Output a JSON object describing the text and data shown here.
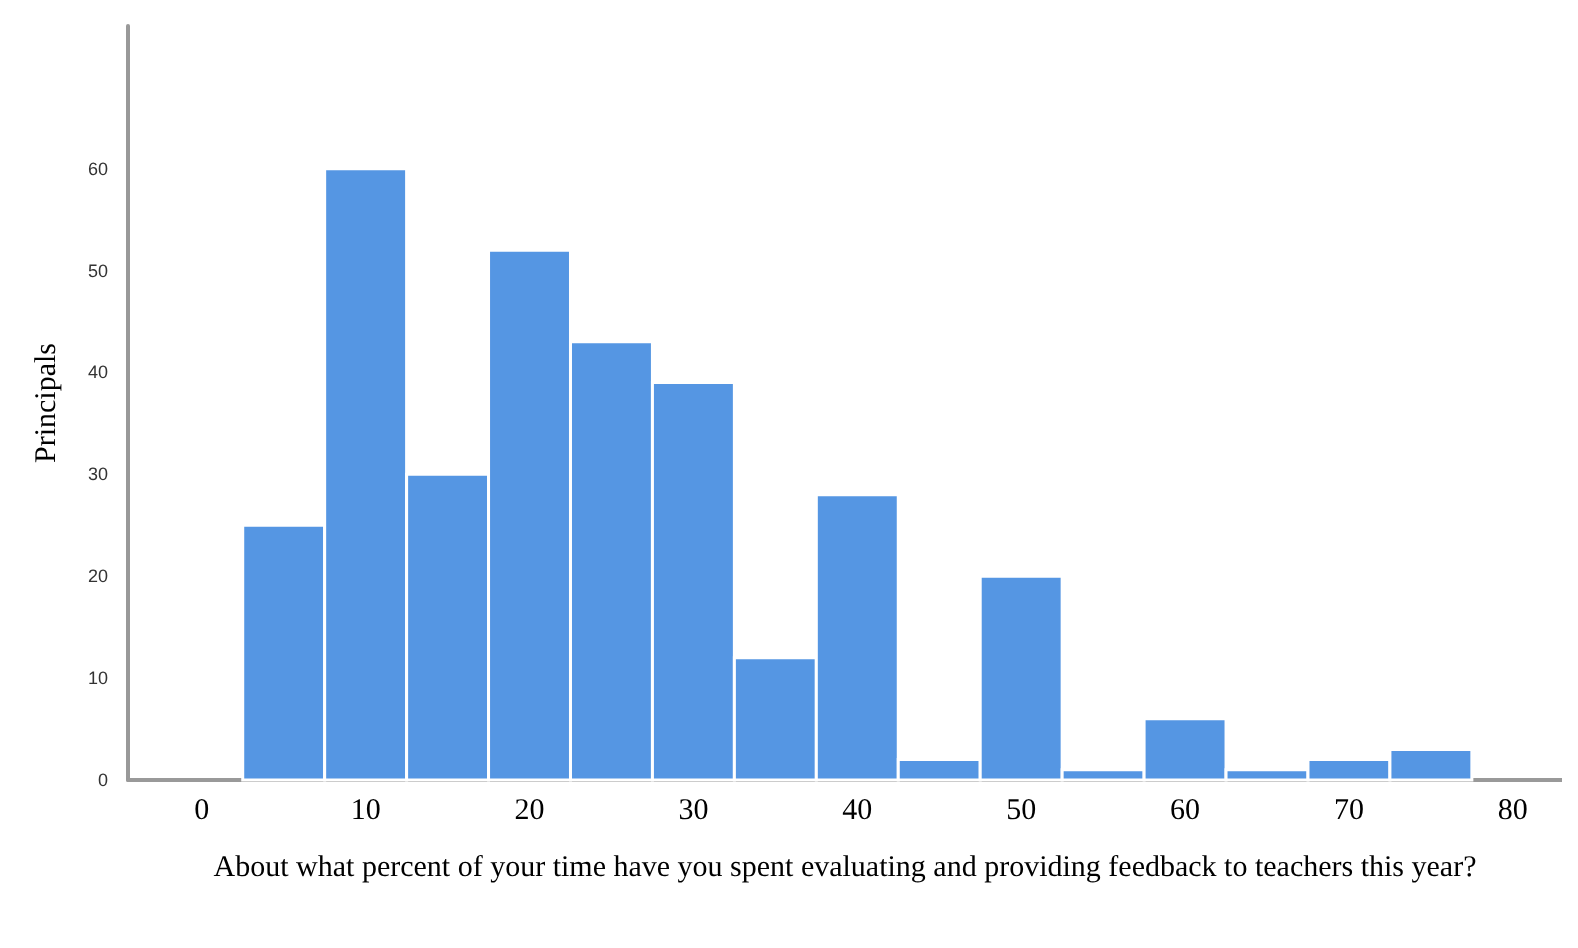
{
  "chart_data": {
    "type": "histogram",
    "xlabel": "About what percent of your time have you spent evaluating and providing feedback to teachers this year?",
    "ylabel": "Principals",
    "bins": [
      2.5,
      7.5,
      12.5,
      17.5,
      22.5,
      27.5,
      32.5,
      37.5,
      42.5,
      47.5,
      52.5,
      57.5,
      62.5,
      67.5,
      72.5,
      77.5
    ],
    "values": [
      25,
      60,
      30,
      52,
      43,
      39,
      12,
      28,
      2,
      20,
      1,
      6,
      1,
      2,
      3
    ],
    "color": "#5596e3",
    "xlim": [
      -4.5,
      83
    ],
    "xticks": [
      0,
      10,
      20,
      30,
      40,
      50,
      60,
      70,
      80
    ],
    "ylim": [
      0,
      74
    ],
    "yticks": [
      0,
      10,
      20,
      30,
      40,
      50,
      60
    ],
    "grid": false
  }
}
